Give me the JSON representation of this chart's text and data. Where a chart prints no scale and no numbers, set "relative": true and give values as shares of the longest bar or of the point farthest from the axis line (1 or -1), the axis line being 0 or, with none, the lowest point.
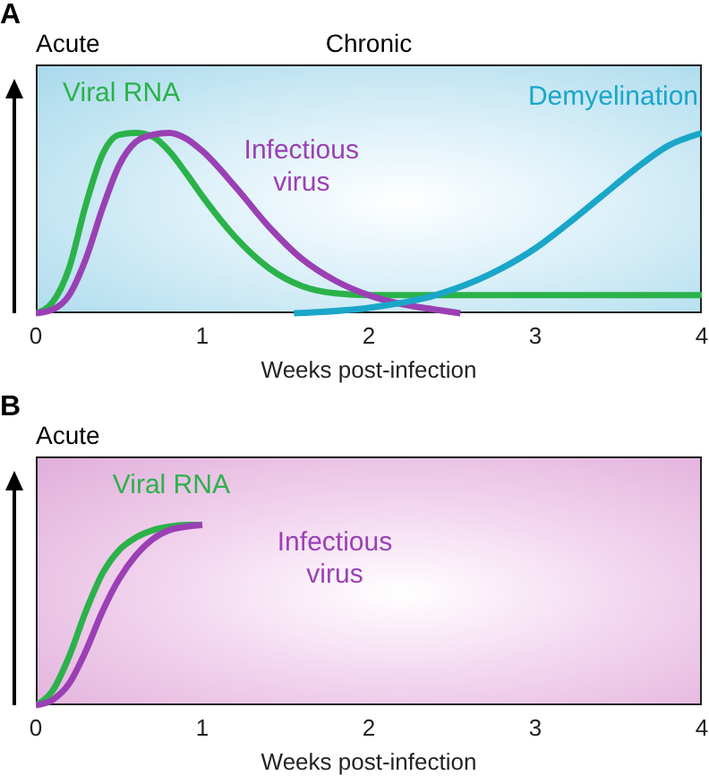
{
  "chart_data": [
    {
      "type": "line",
      "title": "A",
      "relative": true,
      "xlabel": "Weeks post-infection",
      "xlim": [
        0,
        4
      ],
      "xticks": [
        0,
        1,
        2,
        3,
        4
      ],
      "tick_labels": "x",
      "marker": "none",
      "line_style": "solid",
      "annotations": [
        "Acute",
        "Chronic"
      ],
      "series": [
        {
          "name": "Viral RNA",
          "color": "#2bb24a",
          "x": [
            0,
            0.1,
            0.2,
            0.3,
            0.4,
            0.5,
            0.6,
            0.7,
            0.8,
            0.9,
            1.0,
            1.2,
            1.4,
            1.6,
            1.8,
            2.0,
            2.5,
            3,
            3.5,
            4
          ],
          "values": [
            0,
            0.06,
            0.25,
            0.6,
            0.88,
            0.99,
            1,
            0.98,
            0.9,
            0.78,
            0.65,
            0.42,
            0.25,
            0.15,
            0.11,
            0.1,
            0.1,
            0.1,
            0.1,
            0.1
          ]
        },
        {
          "name": "Infectious virus",
          "color": "#9a40b4",
          "x": [
            0,
            0.1,
            0.2,
            0.3,
            0.4,
            0.5,
            0.6,
            0.7,
            0.8,
            0.9,
            1.0,
            1.2,
            1.4,
            1.6,
            1.8,
            2.0,
            2.2,
            2.4,
            2.55
          ],
          "values": [
            0,
            0.02,
            0.1,
            0.3,
            0.58,
            0.82,
            0.95,
            0.99,
            1,
            0.97,
            0.9,
            0.7,
            0.48,
            0.3,
            0.18,
            0.1,
            0.05,
            0.02,
            0
          ]
        },
        {
          "name": "Demyelination",
          "color": "#1aa6c9",
          "x": [
            1.55,
            2.0,
            2.4,
            2.8,
            3.0,
            3.2,
            3.4,
            3.6,
            3.8,
            4.0
          ],
          "values": [
            0,
            0.03,
            0.1,
            0.25,
            0.36,
            0.5,
            0.65,
            0.8,
            0.93,
            1
          ]
        }
      ]
    },
    {
      "type": "line",
      "title": "B",
      "relative": true,
      "xlabel": "Weeks post-infection",
      "xlim": [
        0,
        4
      ],
      "xticks": [
        0,
        1,
        2,
        3,
        4
      ],
      "tick_labels": "x",
      "marker": "none",
      "line_style": "solid",
      "annotations": [
        "Acute"
      ],
      "series": [
        {
          "name": "Viral RNA",
          "color": "#2bb24a",
          "x": [
            0,
            0.1,
            0.2,
            0.3,
            0.4,
            0.5,
            0.6,
            0.7,
            0.8,
            0.9,
            1.0
          ],
          "values": [
            0,
            0.08,
            0.27,
            0.52,
            0.73,
            0.86,
            0.93,
            0.97,
            0.99,
            1,
            1
          ]
        },
        {
          "name": "Infectious virus",
          "color": "#9a40b4",
          "x": [
            0,
            0.1,
            0.2,
            0.3,
            0.4,
            0.5,
            0.6,
            0.7,
            0.8,
            0.9,
            1.0
          ],
          "values": [
            0,
            0.03,
            0.12,
            0.3,
            0.52,
            0.7,
            0.83,
            0.92,
            0.97,
            0.99,
            1
          ]
        }
      ]
    }
  ]
}
